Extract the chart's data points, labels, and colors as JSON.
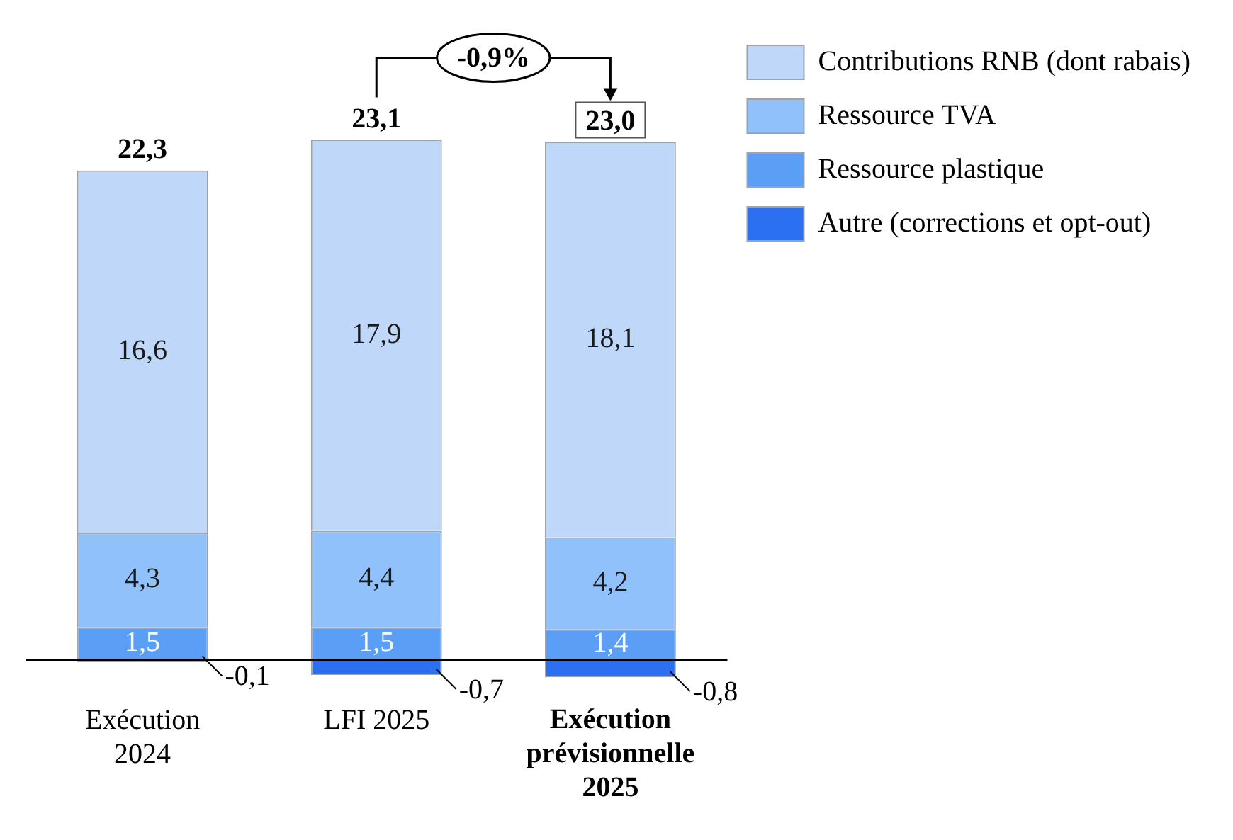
{
  "chart_data": {
    "type": "bar",
    "stacked": true,
    "categories": [
      "Exécution 2024",
      "LFI 2025",
      "Exécution prévisionnelle 2025"
    ],
    "series": [
      {
        "name": "Autre (corrections et opt-out)",
        "color": "#2b70f0",
        "values": [
          -0.1,
          -0.7,
          -0.8
        ],
        "value_labels": [
          "-0,1",
          "-0,7",
          "-0,8"
        ]
      },
      {
        "name": "Ressource plastique",
        "color": "#5b9ef5",
        "values": [
          1.5,
          1.5,
          1.4
        ],
        "value_labels": [
          "1,5",
          "1,5",
          "1,4"
        ]
      },
      {
        "name": "Ressource TVA",
        "color": "#90c1fa",
        "values": [
          4.3,
          4.4,
          4.2
        ],
        "value_labels": [
          "4,3",
          "4,4",
          "4,2"
        ]
      },
      {
        "name": "Contributions RNB (dont rabais)",
        "color": "#bfd8fa",
        "values": [
          16.6,
          17.9,
          18.1
        ],
        "value_labels": [
          "16,6",
          "17,9",
          "18,1"
        ]
      }
    ],
    "totals": [
      "22,3",
      "23,1",
      "23,0"
    ],
    "annotations": [
      "-0,9%"
    ],
    "legend": "top right",
    "grid": false
  }
}
